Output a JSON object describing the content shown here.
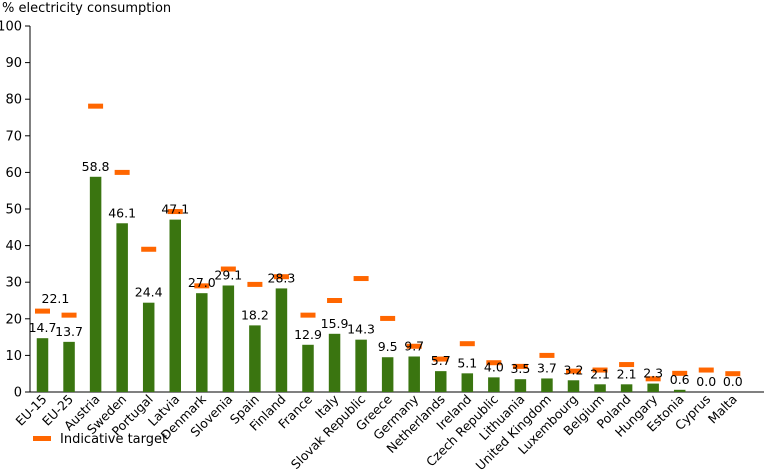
{
  "chart_data": {
    "type": "bar",
    "ylabel": "% electricity consumption",
    "ylim": [
      0,
      100
    ],
    "yticks": [
      0,
      10,
      20,
      30,
      40,
      50,
      60,
      70,
      80,
      90,
      100
    ],
    "grid": false,
    "legend_position": "bottom-left",
    "categories": [
      "EU-15",
      "EU-25",
      "Austria",
      "Sweden",
      "Portugal",
      "Latvia",
      "Denmark",
      "Slovenia",
      "Spain",
      "Finland",
      "France",
      "Italy",
      "Slovak Republic",
      "Greece",
      "Germany",
      "Netherlands",
      "Ireland",
      "Czech Republic",
      "Lithuania",
      "United Kingdom",
      "Luxembourg",
      "Belgium",
      "Poland",
      "Hungary",
      "Estonia",
      "Cyprus",
      "Malta"
    ],
    "series": [
      {
        "type": "bar",
        "values": [
          14.7,
          13.7,
          58.8,
          46.1,
          24.4,
          47.1,
          27.0,
          29.1,
          18.2,
          28.3,
          12.9,
          15.9,
          14.3,
          9.5,
          9.7,
          5.7,
          5.1,
          4.0,
          3.5,
          3.7,
          3.2,
          2.1,
          2.1,
          2.3,
          0.6,
          0.0,
          0.0
        ],
        "labels": [
          "14.7",
          "13.7",
          "58.8",
          "46.1",
          "24.4",
          "47.1",
          "27.0",
          "29.1",
          "18.2",
          "28.3",
          "12.9",
          "15.9",
          "14.3",
          "9.5",
          "9.7",
          "5.7",
          "5.1",
          "4.0",
          "3.5",
          "3.7",
          "3.2",
          "2.1",
          "2.1",
          "2.3",
          "0.6",
          "0.0",
          "0.0"
        ],
        "color": "#3a7510"
      },
      {
        "name": "Indicative target",
        "type": "marker",
        "values": [
          22.1,
          21,
          78.1,
          60,
          39,
          49.3,
          29,
          33.6,
          29.4,
          31.5,
          21,
          25,
          31,
          20.1,
          12.5,
          9,
          13.2,
          8,
          7,
          10,
          5.7,
          6,
          7.5,
          3.6,
          5.1,
          6,
          5
        ],
        "color": "#ff6600"
      }
    ],
    "extra_labels": [
      {
        "category_index": 0,
        "text": "22.1"
      }
    ]
  }
}
